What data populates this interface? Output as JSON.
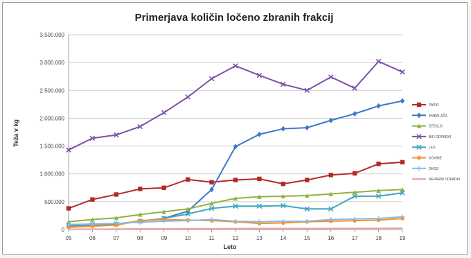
{
  "chart_data": {
    "type": "line",
    "title": "Primerjava količin ločeno zbranih frakcij",
    "xlabel": "Leto",
    "ylabel": "Teža v kg",
    "categories": [
      "05",
      "06",
      "07",
      "08",
      "09",
      "10",
      "11",
      "12",
      "13",
      "14",
      "15",
      "16",
      "17",
      "18",
      "19"
    ],
    "ylim": [
      0,
      3500000
    ],
    "yticks": [
      0,
      500000,
      1000000,
      1500000,
      2000000,
      2500000,
      3000000,
      3500000
    ],
    "ytick_labels": [
      "0",
      "500.000",
      "1.000.000",
      "1.500.000",
      "2.000.000",
      "2.500.000",
      "3.000.000",
      "3.500.000"
    ],
    "grid": true,
    "legend_position": "right",
    "series": [
      {
        "name": "PAPIR",
        "color": "#b22b2b",
        "marker": "square",
        "values": [
          380000,
          540000,
          630000,
          730000,
          750000,
          900000,
          850000,
          890000,
          910000,
          820000,
          890000,
          980000,
          1010000,
          1180000,
          1210000
        ]
      },
      {
        "name": "EMBALAŽA",
        "color": "#3c78c8",
        "marker": "diamond",
        "values": [
          60000,
          80000,
          100000,
          150000,
          200000,
          330000,
          720000,
          1490000,
          1710000,
          1810000,
          1830000,
          1960000,
          2080000,
          2220000,
          2310000
        ]
      },
      {
        "name": "STEKLO",
        "color": "#8fb33e",
        "marker": "triangle",
        "values": [
          140000,
          180000,
          210000,
          270000,
          320000,
          370000,
          470000,
          560000,
          590000,
          600000,
          610000,
          640000,
          670000,
          700000,
          720000
        ]
      },
      {
        "name": "BIO ODPADKI",
        "color": "#7a52a8",
        "marker": "x",
        "values": [
          1430000,
          1640000,
          1700000,
          1850000,
          2100000,
          2380000,
          2710000,
          2940000,
          2770000,
          2610000,
          2500000,
          2740000,
          2540000,
          3020000,
          2830000
        ]
      },
      {
        "name": "LES",
        "color": "#3fa6c0",
        "marker": "x",
        "values": [
          70000,
          90000,
          100000,
          150000,
          200000,
          280000,
          380000,
          420000,
          420000,
          430000,
          370000,
          370000,
          600000,
          600000,
          660000
        ]
      },
      {
        "name": "KOVINE",
        "color": "#f0922e",
        "marker": "circle",
        "values": [
          40000,
          60000,
          80000,
          160000,
          180000,
          170000,
          160000,
          140000,
          110000,
          120000,
          140000,
          150000,
          160000,
          170000,
          200000
        ]
      },
      {
        "name": "OKSO",
        "color": "#8fb8e0",
        "marker": "plus",
        "values": [
          90000,
          100000,
          110000,
          130000,
          150000,
          160000,
          180000,
          150000,
          140000,
          150000,
          150000,
          180000,
          190000,
          200000,
          230000
        ]
      },
      {
        "name": "NEVARNI ODPADKI",
        "color": "#e8a0a0",
        "marker": "none",
        "values": [
          5000,
          8000,
          10000,
          12000,
          14000,
          15000,
          16000,
          17000,
          18000,
          18000,
          19000,
          20000,
          21000,
          22000,
          24000
        ]
      }
    ]
  }
}
